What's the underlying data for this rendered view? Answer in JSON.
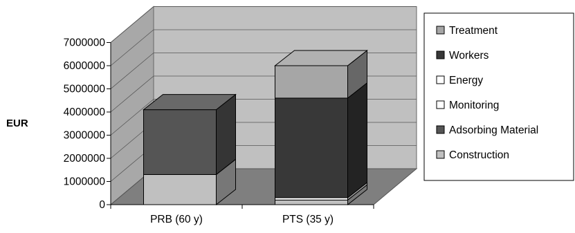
{
  "chart_data": {
    "type": "bar",
    "stacked": true,
    "three_d": true,
    "title": "",
    "xlabel": "",
    "ylabel": "EUR",
    "ylim": [
      0,
      7000000
    ],
    "yticks": [
      0,
      1000000,
      2000000,
      3000000,
      4000000,
      5000000,
      6000000,
      7000000
    ],
    "ytick_labels": [
      "0",
      "1000000",
      "2000000",
      "3000000",
      "4000000",
      "5000000",
      "6000000",
      "7000000"
    ],
    "grid": true,
    "legend_position": "right",
    "categories": [
      "PRB (60 y)",
      "PTS (35 y)"
    ],
    "series": [
      {
        "name": "Construction",
        "values": [
          1300000,
          200000
        ],
        "color": "#c0c0c0"
      },
      {
        "name": "Adsorbing Material",
        "values": [
          2800000,
          0
        ],
        "color": "#555555"
      },
      {
        "name": "Monitoring",
        "values": [
          0,
          100000
        ],
        "color": "#ffffff"
      },
      {
        "name": "Energy",
        "values": [
          0,
          0
        ],
        "color": "#ffffff"
      },
      {
        "name": "Workers",
        "values": [
          0,
          4300000
        ],
        "color": "#383838"
      },
      {
        "name": "Treatment",
        "values": [
          0,
          1400000
        ],
        "color": "#a6a6a6"
      }
    ],
    "legend_order": [
      "Treatment",
      "Workers",
      "Energy",
      "Monitoring",
      "Adsorbing Material",
      "Construction"
    ]
  }
}
